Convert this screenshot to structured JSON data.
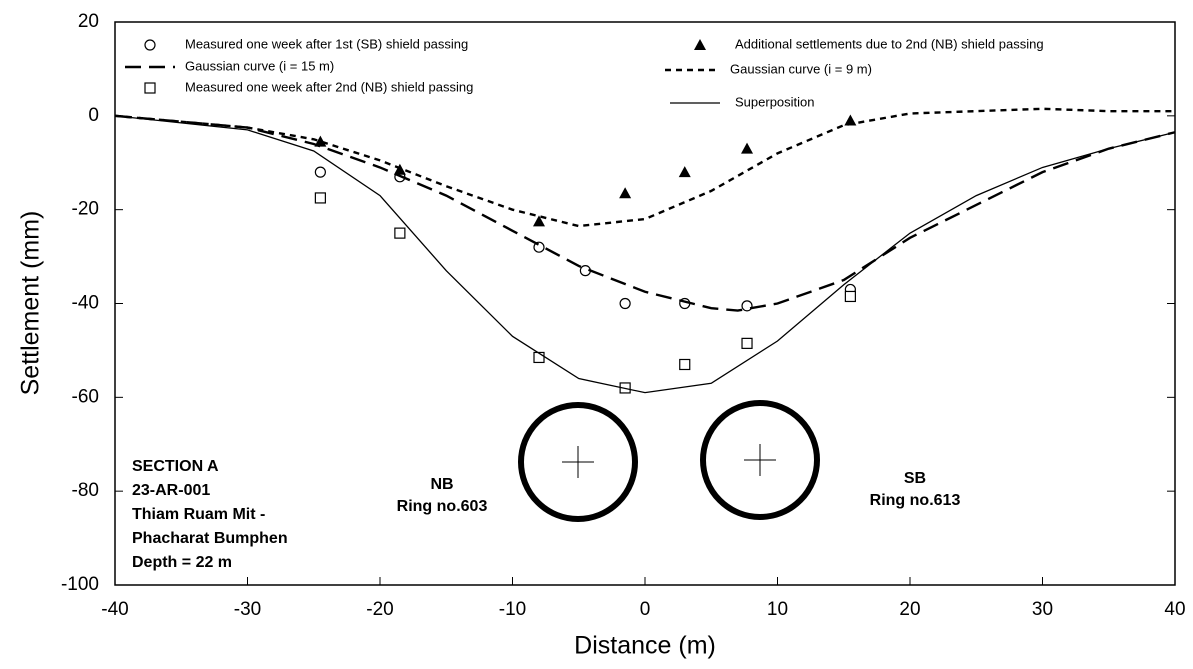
{
  "chart_data": {
    "type": "line",
    "xlabel": "Distance (m)",
    "ylabel": "Settlement (mm)",
    "xlim": [
      -40,
      40
    ],
    "xticks": [
      -40,
      -30,
      -20,
      -10,
      0,
      10,
      20,
      30,
      40
    ],
    "ylim": [
      -100,
      20
    ],
    "yticks": [
      -100,
      -80,
      -60,
      -40,
      -20,
      0,
      20
    ],
    "series": [
      {
        "name": "Measured one week after 1st (SB) shield passing",
        "style": "open-circle",
        "color": "#000000",
        "x": [
          -24.5,
          -18.5,
          -8,
          -4.5,
          -1.5,
          3,
          7.7,
          15.5
        ],
        "values": [
          -12,
          -13,
          -28,
          -33,
          -40,
          -40,
          -40.5,
          -37
        ]
      },
      {
        "name": "Gaussian curve (i = 15 m)",
        "style": "long-dash",
        "color": "#000000",
        "x": [
          -40,
          -30,
          -25,
          -20,
          -15,
          -10,
          -5,
          0,
          5,
          7,
          10,
          15,
          20,
          25,
          30,
          35,
          40
        ],
        "values": [
          0,
          -2.5,
          -6,
          -11,
          -17,
          -24.5,
          -32,
          -37.5,
          -41,
          -41.5,
          -40,
          -35,
          -26,
          -19,
          -12,
          -7,
          -3.5
        ]
      },
      {
        "name": "Measured one week after 2nd (NB) shield passing",
        "style": "open-square",
        "color": "#000000",
        "x": [
          -24.5,
          -18.5,
          -8,
          -1.5,
          3,
          7.7,
          15.5
        ],
        "values": [
          -17.5,
          -25,
          -51.5,
          -58,
          -53,
          -48.5,
          -38.5
        ]
      },
      {
        "name": "Additional settlements due to 2nd (NB) shield passing",
        "style": "filled-triangle",
        "color": "#000000",
        "x": [
          -24.5,
          -18.5,
          -8,
          -1.5,
          3,
          7.7,
          15.5
        ],
        "values": [
          -5.5,
          -11.5,
          -22.5,
          -16.5,
          -12,
          -7,
          -1
        ]
      },
      {
        "name": "Gaussian curve (i = 9 m)",
        "style": "short-dash",
        "color": "#000000",
        "x": [
          -40,
          -30,
          -25,
          -20,
          -15,
          -10,
          -5,
          0,
          5,
          10,
          15,
          20,
          25,
          30,
          35,
          40
        ],
        "values": [
          0,
          -2.5,
          -5,
          -9.5,
          -15,
          -20,
          -23.5,
          -22,
          -16,
          -8,
          -2,
          0.5,
          1,
          1.5,
          1,
          1
        ]
      },
      {
        "name": "Superposition",
        "style": "solid",
        "color": "#000000",
        "x": [
          -40,
          -30,
          -25,
          -20,
          -15,
          -10,
          -5,
          0,
          5,
          10,
          15,
          20,
          25,
          30,
          35,
          40
        ],
        "values": [
          0,
          -3,
          -7.5,
          -17,
          -33,
          -47,
          -56,
          -59,
          -57,
          -48,
          -36,
          -25,
          -17,
          -11,
          -7,
          -3.5
        ]
      }
    ],
    "annotations": {
      "section": [
        "SECTION A",
        "23-AR-001",
        "Thiam Ruam Mit -",
        "Phacharat Bumphen",
        "Depth = 22 m"
      ],
      "nb": [
        "NB",
        "Ring no.603"
      ],
      "sb": [
        "SB",
        "Ring no.613"
      ]
    }
  }
}
